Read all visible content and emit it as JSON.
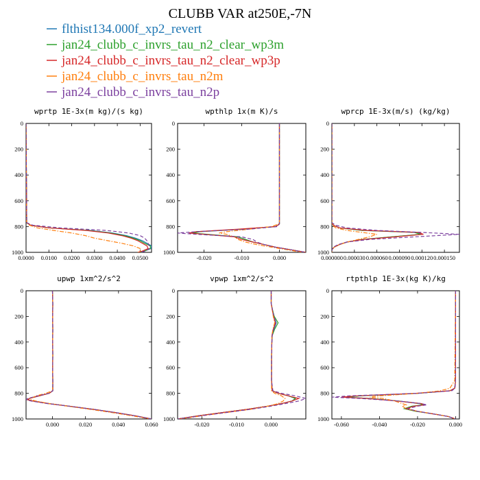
{
  "title": "CLUBB VAR at250E,-7N",
  "series": [
    {
      "name": "flthist134.000f_xp2_revert",
      "color": "#1f77b4",
      "dash": "solid"
    },
    {
      "name": "jan24_clubb_c_invrs_tau_n2_clear_wp3m",
      "color": "#2ca02c",
      "dash": "solid"
    },
    {
      "name": "jan24_clubb_c_invrs_tau_n2_clear_wp3p",
      "color": "#d62728",
      "dash": "solid"
    },
    {
      "name": "jan24_clubb_c_invrs_tau_n2m",
      "color": "#ff7f0e",
      "dash": "dashdot"
    },
    {
      "name": "jan24_clubb_c_invrs_tau_n2p",
      "color": "#7b3f9e",
      "dash": "dashed"
    }
  ],
  "chart_data": [
    {
      "type": "line",
      "title": "wprtp  1E-3x(m kg)/(s kg)",
      "xlim": [
        0,
        0.055
      ],
      "ylim": [
        0,
        1000
      ],
      "y_inverted": true,
      "xticks": [
        0,
        0.01,
        0.02,
        0.03,
        0.04,
        0.05
      ],
      "xtick_labels": [
        "0.0000",
        "0.0100",
        "0.0200",
        "0.0300",
        "0.0400",
        "0.0500"
      ],
      "yticks": [
        0,
        200,
        400,
        600,
        800,
        1000
      ],
      "ytick_labels": [
        "0",
        "200",
        "400",
        "600",
        "800",
        "1000"
      ],
      "y": [
        0,
        770,
        790,
        810,
        830,
        850,
        870,
        890,
        910,
        930,
        950,
        970,
        990,
        1000
      ],
      "series_values": [
        [
          0,
          0.0003,
          0.002,
          0.01,
          0.028,
          0.038,
          0.044,
          0.048,
          0.051,
          0.053,
          0.055,
          0.0548,
          0.052,
          0.05
        ],
        [
          0,
          0.0003,
          0.002,
          0.01,
          0.027,
          0.037,
          0.043,
          0.047,
          0.05,
          0.052,
          0.0545,
          0.0545,
          0.052,
          0.05
        ],
        [
          0,
          0.0003,
          0.002,
          0.01,
          0.026,
          0.036,
          0.042,
          0.046,
          0.049,
          0.051,
          0.053,
          0.0535,
          0.051,
          0.049
        ],
        [
          0,
          0.0002,
          0.0015,
          0.005,
          0.012,
          0.02,
          0.026,
          0.03,
          0.036,
          0.042,
          0.047,
          0.05,
          0.05,
          0.049
        ],
        [
          0,
          0.0003,
          0.003,
          0.015,
          0.035,
          0.045,
          0.05,
          0.052,
          0.053,
          0.0535,
          0.054,
          0.054,
          0.0525,
          0.05
        ]
      ]
    },
    {
      "type": "line",
      "title": "wpthlp  1x(m K)/s",
      "xlim": [
        -0.027,
        0.007
      ],
      "ylim": [
        0,
        1000
      ],
      "y_inverted": true,
      "xticks": [
        -0.02,
        -0.01,
        0
      ],
      "xtick_labels": [
        "-0.020",
        "-0.010",
        "0.000"
      ],
      "yticks": [
        0,
        200,
        400,
        600,
        800,
        1000
      ],
      "ytick_labels": [
        "0",
        "200",
        "400",
        "600",
        "800",
        "1000"
      ],
      "y": [
        0,
        760,
        780,
        800,
        820,
        840,
        850,
        860,
        880,
        900,
        920,
        940,
        960,
        980,
        1000
      ],
      "series_values": [
        [
          0,
          0,
          0,
          -0.001,
          -0.01,
          -0.022,
          -0.024,
          -0.02,
          -0.011,
          -0.009,
          -0.007,
          -0.004,
          -0.001,
          0.003,
          0.007
        ],
        [
          0,
          0,
          0,
          -0.001,
          -0.01,
          -0.021,
          -0.023,
          -0.019,
          -0.011,
          -0.009,
          -0.007,
          -0.004,
          -0.001,
          0.003,
          0.007
        ],
        [
          0,
          0,
          0,
          -0.001,
          -0.011,
          -0.022,
          -0.024,
          -0.02,
          -0.012,
          -0.01,
          -0.007,
          -0.004,
          -0.001,
          0.003,
          0.007
        ],
        [
          0,
          0,
          -0.0002,
          -0.002,
          -0.008,
          -0.014,
          -0.016,
          -0.014,
          -0.012,
          -0.011,
          -0.009,
          -0.006,
          -0.002,
          0.002,
          0.006
        ],
        [
          0,
          0,
          0,
          -0.0005,
          -0.008,
          -0.022,
          -0.027,
          -0.022,
          -0.01,
          -0.007,
          -0.006,
          -0.004,
          -0.001,
          0.003,
          0.007
        ]
      ]
    },
    {
      "type": "line",
      "title": "wprcp  1E-3x(m/s) (kg/kg)",
      "xlim": [
        0,
        0.00017
      ],
      "ylim": [
        0,
        1000
      ],
      "y_inverted": true,
      "xticks": [
        0,
        3e-05,
        6e-05,
        9e-05,
        0.00012,
        0.00015
      ],
      "xtick_labels": [
        "0.000000",
        "0.000030",
        "0.000060",
        "0.000090",
        "0.000120",
        "0.000150"
      ],
      "yticks": [
        0,
        200,
        400,
        600,
        800,
        1000
      ],
      "ytick_labels": [
        "0",
        "200",
        "400",
        "600",
        "800",
        "1000"
      ],
      "y": [
        0,
        770,
        790,
        810,
        830,
        845,
        860,
        880,
        900,
        920,
        940,
        960,
        980,
        1000
      ],
      "series_values": [
        [
          0,
          0,
          2e-06,
          1e-05,
          4e-05,
          0.00011,
          0.00012,
          8e-05,
          4e-05,
          2e-05,
          1e-05,
          3e-06,
          0,
          0
        ],
        [
          0,
          0,
          2e-06,
          1e-05,
          4e-05,
          0.00011,
          0.000118,
          8e-05,
          4e-05,
          2e-05,
          1e-05,
          3e-06,
          0,
          0
        ],
        [
          0,
          0,
          2e-06,
          1e-05,
          4.5e-05,
          0.000115,
          0.000122,
          8.5e-05,
          4.2e-05,
          2e-05,
          1e-05,
          3e-06,
          0,
          0
        ],
        [
          0,
          0,
          1e-06,
          5e-06,
          2e-05,
          4e-05,
          6e-05,
          5e-05,
          3.5e-05,
          2e-05,
          1e-05,
          3e-06,
          0,
          0
        ],
        [
          0,
          0,
          5e-06,
          2e-05,
          6e-05,
          0.00012,
          0.00017,
          0.00011,
          5e-05,
          2e-05,
          8e-06,
          2e-06,
          0,
          0
        ]
      ]
    },
    {
      "type": "line",
      "title": "upwp  1xm^2/s^2",
      "xlim": [
        -0.016,
        0.06
      ],
      "ylim": [
        0,
        1000
      ],
      "y_inverted": true,
      "xticks": [
        0,
        0.02,
        0.04,
        0.06
      ],
      "xtick_labels": [
        "0.000",
        "0.020",
        "0.040",
        "0.060"
      ],
      "yticks": [
        0,
        200,
        400,
        600,
        800,
        1000
      ],
      "ytick_labels": [
        "0",
        "200",
        "400",
        "600",
        "800",
        "1000"
      ],
      "y": [
        0,
        100,
        200,
        300,
        400,
        500,
        600,
        700,
        780,
        800,
        820,
        840,
        850,
        860,
        880,
        900,
        925,
        950,
        975,
        1000
      ],
      "series_values": [
        [
          0,
          0.0002,
          0.0001,
          0.0002,
          0.0001,
          0.0002,
          0.0001,
          0.0002,
          0.0002,
          -0.002,
          -0.008,
          -0.014,
          -0.015,
          -0.012,
          -0.002,
          0.01,
          0.025,
          0.038,
          0.05,
          0.06
        ],
        [
          0,
          0.0002,
          0.0001,
          0.0002,
          0.0001,
          0.0002,
          0.0001,
          0.0002,
          0.0002,
          -0.002,
          -0.008,
          -0.014,
          -0.015,
          -0.012,
          -0.002,
          0.01,
          0.025,
          0.038,
          0.05,
          0.06
        ],
        [
          0,
          0.0002,
          0.0001,
          0.0002,
          0.0001,
          0.0002,
          0.0001,
          0.0002,
          0.0002,
          -0.002,
          -0.008,
          -0.014,
          -0.015,
          -0.012,
          -0.002,
          0.01,
          0.025,
          0.038,
          0.05,
          0.06
        ],
        [
          0,
          0.0002,
          0.0001,
          0.0002,
          0.0001,
          0.0002,
          0.0001,
          0.0002,
          0,
          -0.004,
          -0.01,
          -0.013,
          -0.013,
          -0.01,
          -0.002,
          0.009,
          0.023,
          0.036,
          0.048,
          0.059
        ],
        [
          0,
          0.0002,
          0.0001,
          0.0002,
          0.0001,
          0.0002,
          0.0001,
          0.0002,
          0.0002,
          -0.002,
          -0.009,
          -0.015,
          -0.016,
          -0.013,
          -0.003,
          0.01,
          0.025,
          0.038,
          0.05,
          0.06
        ]
      ]
    },
    {
      "type": "line",
      "title": "vpwp  1xm^2/s^2",
      "xlim": [
        -0.027,
        0.01
      ],
      "ylim": [
        0,
        1000
      ],
      "y_inverted": true,
      "xticks": [
        -0.02,
        -0.01,
        0
      ],
      "xtick_labels": [
        "-0.020",
        "-0.010",
        "0.000"
      ],
      "yticks": [
        0,
        200,
        400,
        600,
        800,
        1000
      ],
      "ytick_labels": [
        "0",
        "200",
        "400",
        "600",
        "800",
        "1000"
      ],
      "y": [
        0,
        100,
        150,
        200,
        250,
        300,
        350,
        400,
        500,
        600,
        700,
        780,
        800,
        820,
        840,
        860,
        880,
        900,
        925,
        950,
        975,
        1000
      ],
      "series_values": [
        [
          0,
          0,
          0.0004,
          0.0008,
          0.0015,
          0.0008,
          0.0003,
          0.0002,
          0.0001,
          0.0001,
          0.0001,
          0.0003,
          0.002,
          0.005,
          0.007,
          0.006,
          0.003,
          -0.001,
          -0.007,
          -0.014,
          -0.021,
          -0.027
        ],
        [
          0,
          0,
          0.0004,
          0.0009,
          0.002,
          0.001,
          0.0003,
          0.0002,
          0.0001,
          0.0001,
          0.0001,
          0.0003,
          0.002,
          0.005,
          0.007,
          0.006,
          0.003,
          -0.001,
          -0.007,
          -0.014,
          -0.021,
          -0.027
        ],
        [
          0,
          0,
          0.0003,
          0.0007,
          0.0012,
          0.0006,
          0.0002,
          0.0002,
          0.0001,
          0.0001,
          0.0001,
          0.0003,
          0.002,
          0.005,
          0.008,
          0.006,
          0.003,
          -0.001,
          -0.007,
          -0.014,
          -0.021,
          -0.027
        ],
        [
          0,
          0,
          0.0003,
          0.0006,
          0.001,
          0.0005,
          0.0002,
          0.0002,
          0.0001,
          0.0001,
          0.0001,
          0.0001,
          0.001,
          0.003,
          0.004,
          0.0035,
          0.002,
          -0.001,
          -0.006,
          -0.013,
          -0.02,
          -0.026
        ],
        [
          0,
          0,
          0.0004,
          0.0008,
          0.0014,
          0.0007,
          0.0003,
          0.0002,
          0.0001,
          0.0001,
          0.0001,
          0.0005,
          0.003,
          0.007,
          0.01,
          0.008,
          0.004,
          0,
          -0.006,
          -0.013,
          -0.02,
          -0.027
        ]
      ]
    },
    {
      "type": "line",
      "title": "rtpthlp  1E-3x(kg K)/kg",
      "xlim": [
        -0.065,
        0.002
      ],
      "ylim": [
        0,
        1000
      ],
      "y_inverted": true,
      "xticks": [
        -0.06,
        -0.04,
        -0.02,
        0
      ],
      "xtick_labels": [
        "-0.060",
        "-0.040",
        "-0.020",
        "0.000"
      ],
      "yticks": [
        0,
        200,
        400,
        600,
        800,
        1000
      ],
      "ytick_labels": [
        "0",
        "200",
        "400",
        "600",
        "800",
        "1000"
      ],
      "y": [
        0,
        700,
        760,
        780,
        800,
        820,
        830,
        840,
        860,
        880,
        890,
        900,
        920,
        940,
        960,
        980,
        1000
      ],
      "series_values": [
        [
          0,
          0,
          -0.0005,
          -0.003,
          -0.02,
          -0.05,
          -0.058,
          -0.045,
          -0.03,
          -0.018,
          -0.016,
          -0.022,
          -0.026,
          -0.02,
          -0.012,
          -0.004,
          0
        ],
        [
          0,
          0,
          -0.0005,
          -0.003,
          -0.02,
          -0.05,
          -0.058,
          -0.045,
          -0.03,
          -0.019,
          -0.017,
          -0.023,
          -0.027,
          -0.021,
          -0.012,
          -0.004,
          0
        ],
        [
          0,
          0,
          -0.0005,
          -0.003,
          -0.021,
          -0.052,
          -0.06,
          -0.046,
          -0.031,
          -0.018,
          -0.016,
          -0.022,
          -0.026,
          -0.02,
          -0.012,
          -0.004,
          0
        ],
        [
          0,
          -0.0005,
          -0.003,
          -0.008,
          -0.02,
          -0.04,
          -0.045,
          -0.038,
          -0.032,
          -0.028,
          -0.026,
          -0.028,
          -0.026,
          -0.02,
          -0.012,
          -0.004,
          0
        ],
        [
          0,
          0,
          -0.0003,
          -0.002,
          -0.02,
          -0.056,
          -0.065,
          -0.05,
          -0.03,
          -0.018,
          -0.015,
          -0.02,
          -0.025,
          -0.02,
          -0.012,
          -0.004,
          0
        ]
      ]
    }
  ]
}
